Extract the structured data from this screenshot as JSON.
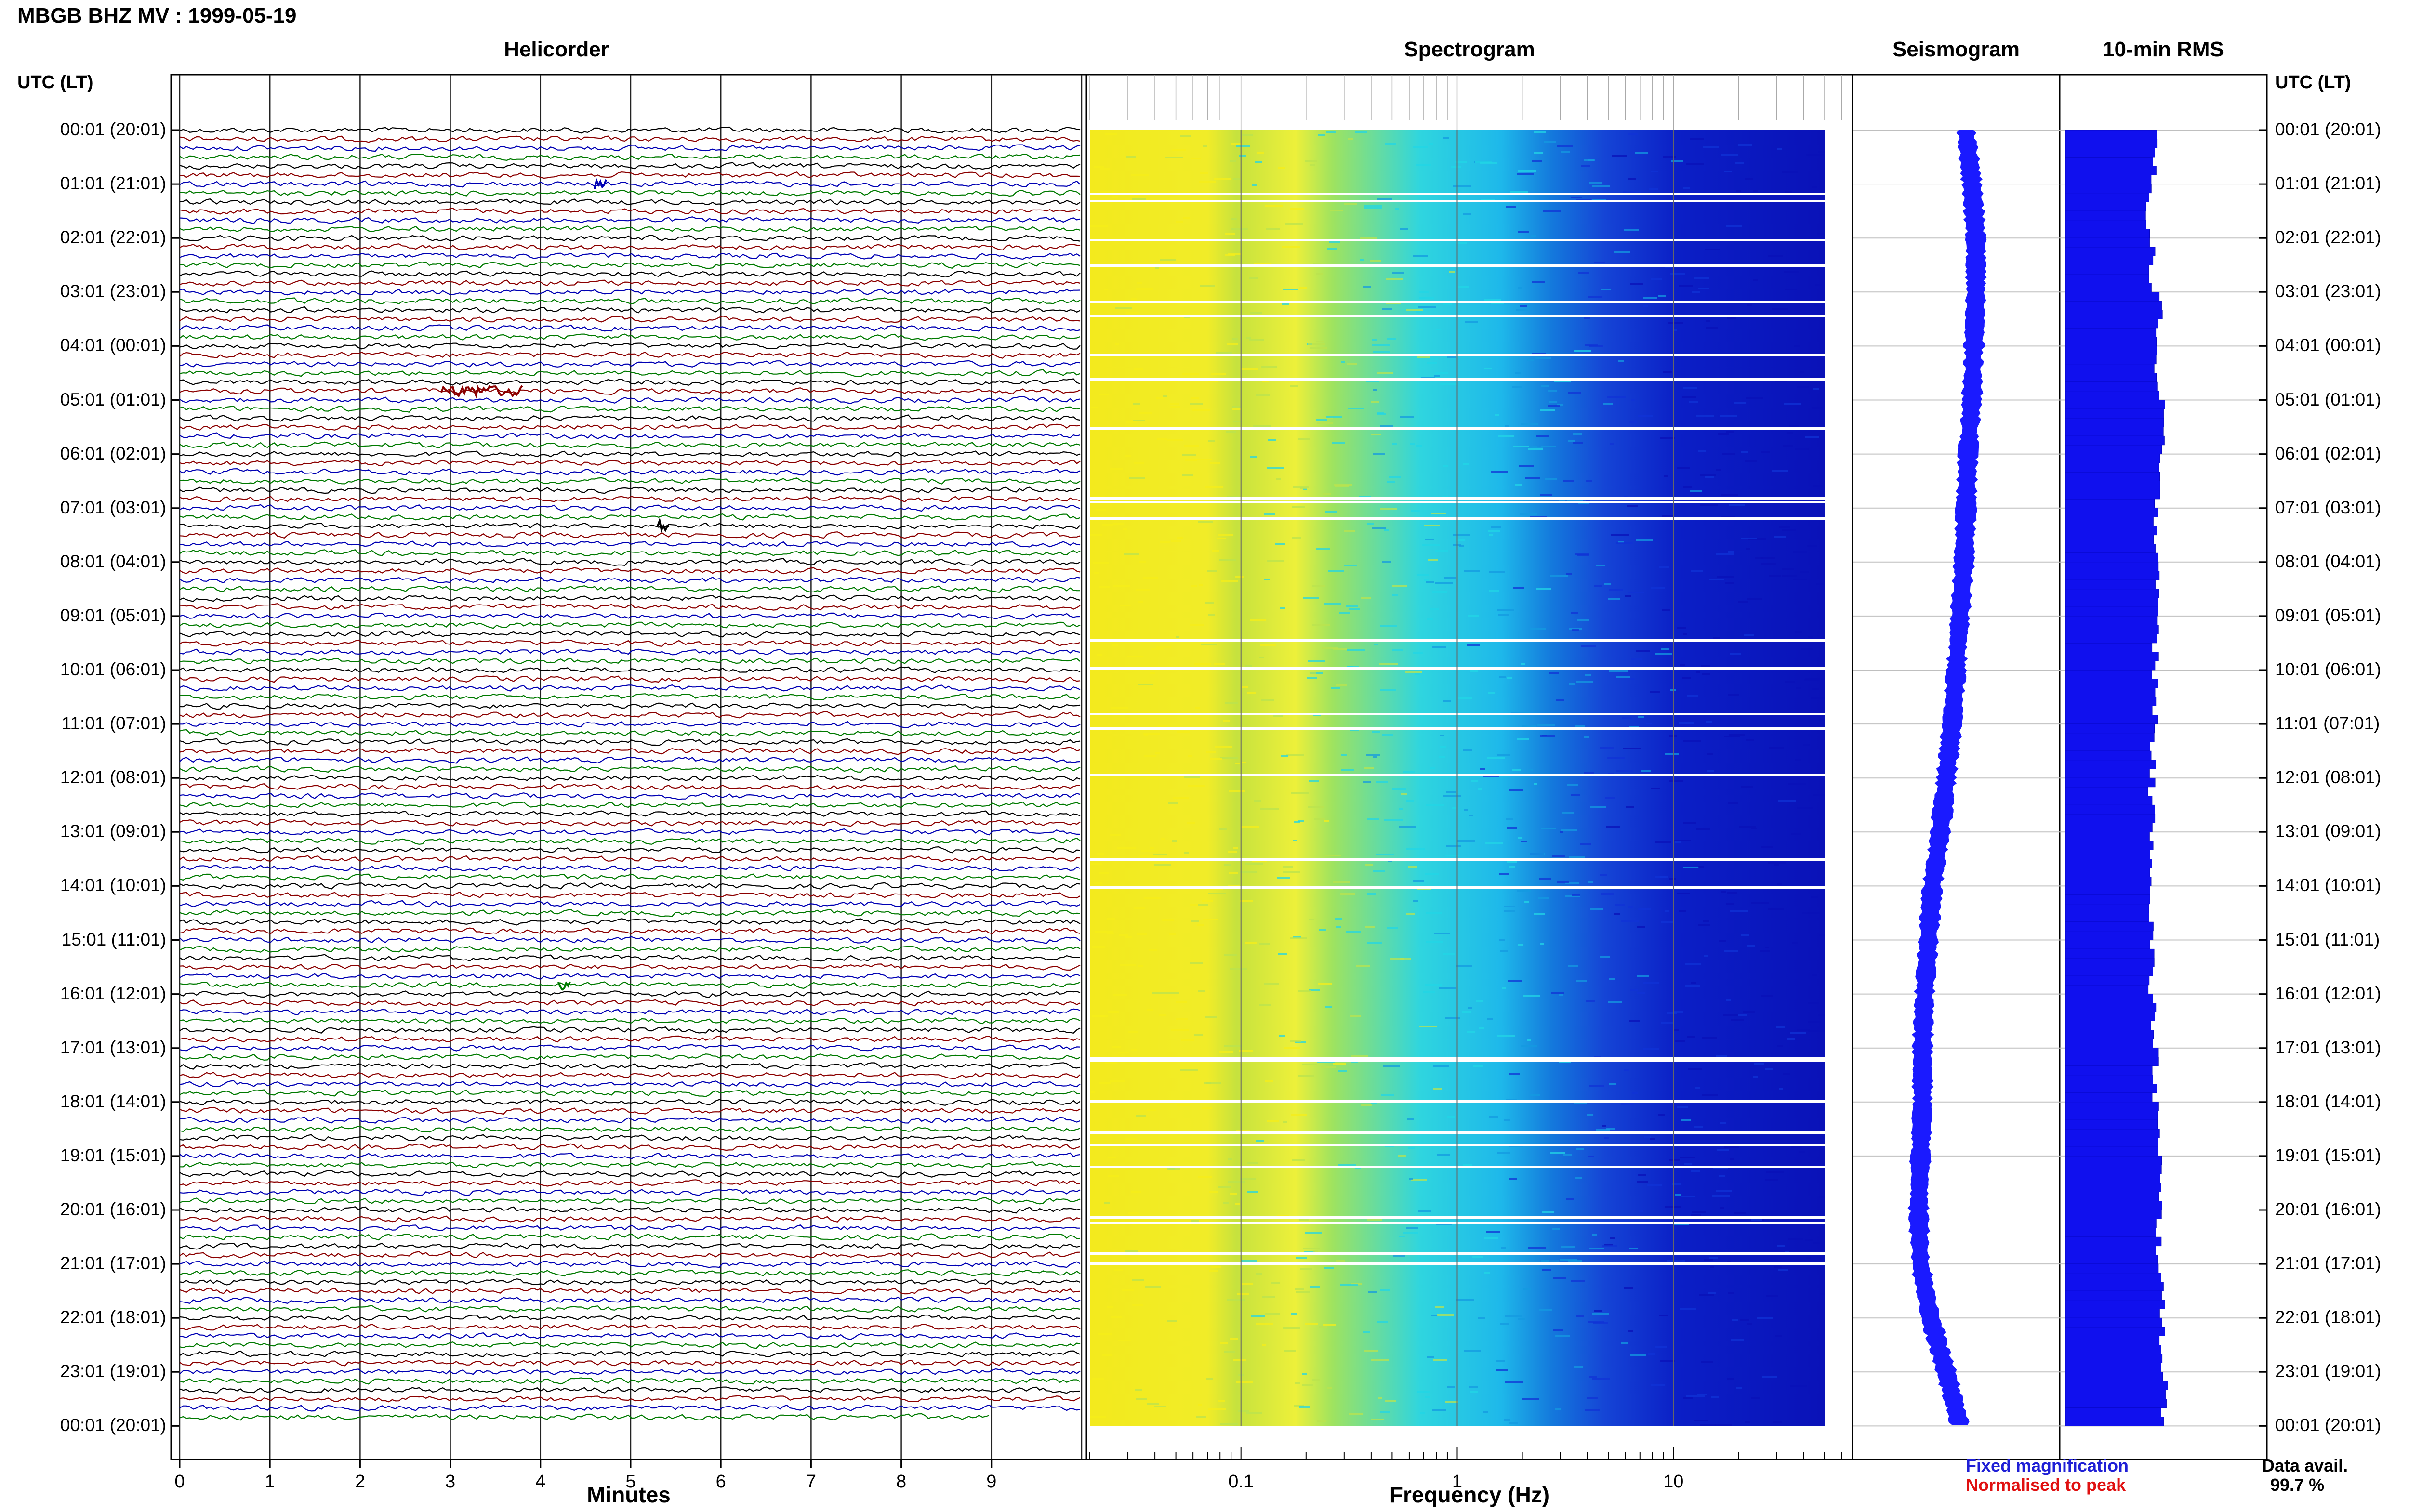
{
  "header": {
    "title": "MBGB BHZ MV : 1999-05-19",
    "left_time_header": "UTC (LT)",
    "right_time_header": "UTC (LT)"
  },
  "panels": {
    "helicorder": "Helicorder",
    "spectrogram": "Spectrogram",
    "seismogram": "Seismogram",
    "rms": "10-min RMS"
  },
  "time_labels": [
    "00:01 (20:01)",
    "01:01 (21:01)",
    "02:01 (22:01)",
    "03:01 (23:01)",
    "04:01 (00:01)",
    "05:01 (01:01)",
    "06:01 (02:01)",
    "07:01 (03:01)",
    "08:01 (04:01)",
    "09:01 (05:01)",
    "10:01 (06:01)",
    "11:01 (07:01)",
    "12:01 (08:01)",
    "13:01 (09:01)",
    "14:01 (10:01)",
    "15:01 (11:01)",
    "16:01 (12:01)",
    "17:01 (13:01)",
    "18:01 (14:01)",
    "19:01 (15:01)",
    "20:01 (16:01)",
    "21:01 (17:01)",
    "22:01 (18:01)",
    "23:01 (19:01)",
    "00:01 (20:01)"
  ],
  "legend": {
    "fixed": "Fixed magnification",
    "normalised": "Normalised to peak",
    "fixed_color": "#1f1fd6",
    "normalised_color": "#e01010"
  },
  "data_availability": {
    "label": "Data avail.",
    "value": "99.7 %"
  },
  "colors": {
    "trace_cycle": [
      "#000000",
      "#8b0000",
      "#0000b4",
      "#007a00"
    ],
    "rms_bar": "#1010ee",
    "seismogram": "#1a1aff",
    "grid": "#bfbfbf"
  },
  "chart_data": [
    {
      "type": "line",
      "name": "helicorder",
      "xlabel": "Minutes",
      "x_ticks": [
        "0",
        "1",
        "2",
        "3",
        "4",
        "5",
        "6",
        "7",
        "8",
        "9"
      ],
      "xlim": [
        0,
        10
      ],
      "lines_per_hour": 6,
      "line_minutes": 10,
      "hours": 24,
      "trace_colors_cycle": [
        "black",
        "dark red",
        "blue",
        "green"
      ],
      "events": [
        {
          "hour": 1,
          "line": 0,
          "minute": 4.6
        },
        {
          "hour": 4,
          "line": 5,
          "minute": 2.9,
          "duration_min": 0.9
        },
        {
          "hour": 7,
          "line": 2,
          "minute": 5.3
        },
        {
          "hour": 15,
          "line": 5,
          "minute": 4.2
        }
      ]
    },
    {
      "type": "heatmap",
      "name": "spectrogram",
      "xlabel": "Frequency (Hz)",
      "x_scale": "log",
      "xlim": [
        0.02,
        50
      ],
      "x_ticks": [
        "0.1",
        "1",
        "10"
      ],
      "colormap": [
        "#f5ee1a",
        "#b9e34f",
        "#22d6e6",
        "#149ae0",
        "#1033d6",
        "#0a12b8"
      ],
      "white_gap_rows_approx": 30
    },
    {
      "type": "line",
      "name": "seismogram",
      "description_values": "hourly offset of low-frequency envelope",
      "y_hours": [
        0,
        1,
        2,
        3,
        4,
        5,
        6,
        7,
        8,
        9,
        10,
        11,
        12,
        13,
        14,
        15,
        16,
        17,
        18,
        19,
        20,
        21,
        22,
        23,
        24
      ],
      "offset": [
        0.55,
        0.58,
        0.6,
        0.6,
        0.59,
        0.58,
        0.56,
        0.55,
        0.54,
        0.52,
        0.5,
        0.48,
        0.45,
        0.42,
        0.38,
        0.36,
        0.34,
        0.33,
        0.33,
        0.32,
        0.31,
        0.32,
        0.37,
        0.45,
        0.52
      ]
    },
    {
      "type": "bar",
      "name": "10-min RMS",
      "orientation": "horizontal",
      "hourly_rms_relative": [
        0.45,
        0.43,
        0.44,
        0.48,
        0.46,
        0.5,
        0.47,
        0.47,
        0.48,
        0.46,
        0.46,
        0.45,
        0.44,
        0.45,
        0.44,
        0.44,
        0.45,
        0.46,
        0.47,
        0.48,
        0.48,
        0.49,
        0.5,
        0.51
      ]
    }
  ]
}
